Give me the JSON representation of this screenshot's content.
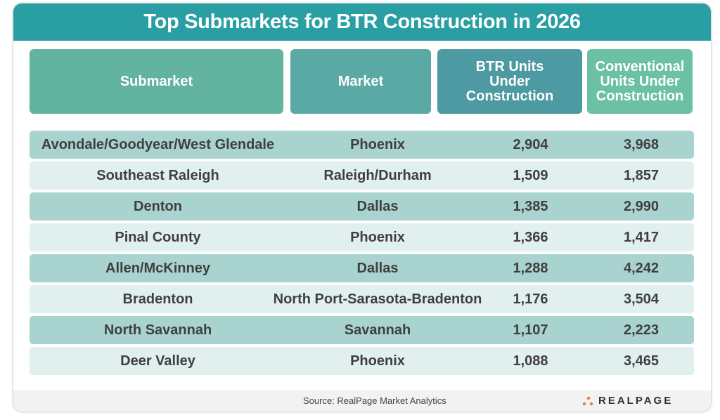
{
  "title": "Top Submarkets for BTR Construction in 2026",
  "colors": {
    "title_bar": "#2a9fa3",
    "header_submarket": "#63b3a1",
    "header_market": "#5aa9a4",
    "header_btr": "#4e9aa3",
    "header_conventional": "#6cc0a3",
    "row_dark": "#a9d3cf",
    "row_light": "#e1f0ee"
  },
  "footer": {
    "source": "Source:  RealPage Market Analytics",
    "logo": "REALPAGE"
  },
  "chart_data": {
    "type": "table",
    "title": "Top Submarkets for BTR Construction in 2026",
    "columns": [
      "Submarket",
      "Market",
      "BTR Units Under Construction",
      "Conventional Units Under Construction"
    ],
    "rows": [
      [
        "Avondale/Goodyear/West Glendale",
        "Phoenix",
        "2,904",
        "3,968"
      ],
      [
        "Southeast Raleigh",
        "Raleigh/Durham",
        "1,509",
        "1,857"
      ],
      [
        "Denton",
        "Dallas",
        "1,385",
        "2,990"
      ],
      [
        "Pinal County",
        "Phoenix",
        "1,366",
        "1,417"
      ],
      [
        "Allen/McKinney",
        "Dallas",
        "1,288",
        "4,242"
      ],
      [
        "Bradenton",
        "North Port-Sarasota-Bradenton",
        "1,176",
        "3,504"
      ],
      [
        "North Savannah",
        "Savannah",
        "1,107",
        "2,223"
      ],
      [
        "Deer Valley",
        "Phoenix",
        "1,088",
        "3,465"
      ]
    ]
  }
}
